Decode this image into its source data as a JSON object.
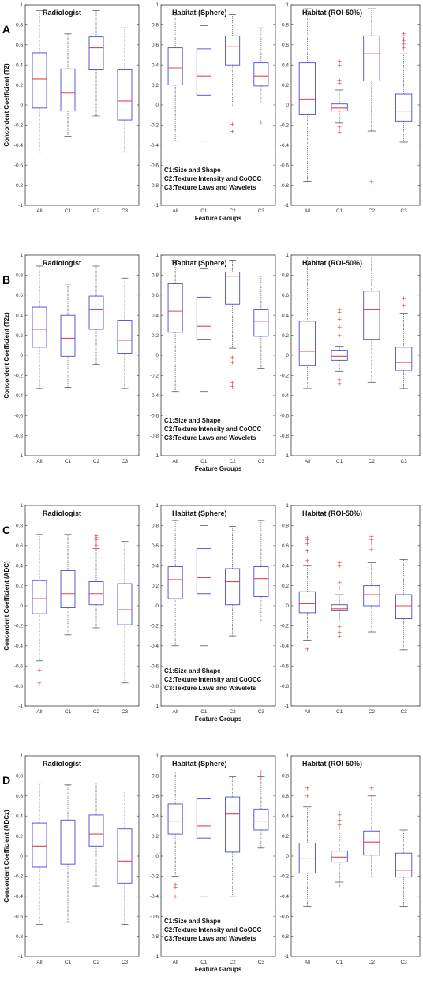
{
  "figure": {
    "xlabel": "Feature Groups",
    "legend_lines": [
      "C1:Size and Shape",
      "C2:Texture Intensity and CoOCC",
      "C3:Texture Laws and Wavelets"
    ],
    "subplot_titles": [
      "Radiologist",
      "Habitat (Sphere)",
      "Habitat (ROI-50%)"
    ],
    "ytick_labels": [
      "-1",
      "-0.8",
      "-0.6",
      "-0.4",
      "-0.2",
      "0",
      "0.2",
      "0.4",
      "0.6",
      "0.8",
      "1"
    ],
    "colors": {
      "box": "#4a4acf",
      "median": "#e8454a",
      "outlier": "#e04444"
    }
  },
  "chart_data": [
    {
      "type": "box",
      "panel": "A",
      "ylabel": "Concordent Coefficient (T2)",
      "categories": [
        "All",
        "C1",
        "C2",
        "C3"
      ],
      "ylim": [
        -1,
        1
      ],
      "subplots": [
        {
          "title": "Radiologist",
          "boxes": [
            {
              "q1": -0.03,
              "median": 0.26,
              "q3": 0.52,
              "lo": -0.47,
              "hi": 0.94,
              "outliers": []
            },
            {
              "q1": -0.06,
              "median": 0.12,
              "q3": 0.36,
              "lo": -0.31,
              "hi": 0.71,
              "outliers": []
            },
            {
              "q1": 0.35,
              "median": 0.57,
              "q3": 0.68,
              "lo": -0.11,
              "hi": 0.94,
              "outliers": []
            },
            {
              "q1": -0.15,
              "median": 0.04,
              "q3": 0.35,
              "lo": -0.47,
              "hi": 0.77,
              "outliers": []
            }
          ]
        },
        {
          "title": "Habitat (Sphere)",
          "boxes": [
            {
              "q1": 0.2,
              "median": 0.37,
              "q3": 0.57,
              "lo": -0.36,
              "hi": 0.9,
              "outliers": []
            },
            {
              "q1": 0.1,
              "median": 0.29,
              "q3": 0.56,
              "lo": -0.36,
              "hi": 0.79,
              "outliers": []
            },
            {
              "q1": 0.4,
              "median": 0.58,
              "q3": 0.69,
              "lo": -0.02,
              "hi": 0.9,
              "outliers": [
                -0.19,
                -0.26
              ]
            },
            {
              "q1": 0.19,
              "median": 0.29,
              "q3": 0.42,
              "lo": 0.02,
              "hi": 0.77,
              "outliers": [
                -0.17
              ]
            }
          ]
        },
        {
          "title": "Habitat (ROI-50%)",
          "boxes": [
            {
              "q1": -0.09,
              "median": 0.06,
              "q3": 0.42,
              "lo": -0.76,
              "hi": 0.96,
              "outliers": []
            },
            {
              "q1": -0.06,
              "median": -0.03,
              "q3": 0.01,
              "lo": -0.18,
              "hi": 0.15,
              "outliers": [
                0.22,
                0.25,
                0.4,
                0.44,
                -0.22,
                -0.27
              ]
            },
            {
              "q1": 0.24,
              "median": 0.51,
              "q3": 0.69,
              "lo": -0.26,
              "hi": 0.96,
              "outliers": [
                -0.76
              ]
            },
            {
              "q1": -0.16,
              "median": -0.06,
              "q3": 0.11,
              "lo": -0.37,
              "hi": 0.51,
              "outliers": [
                0.57,
                0.61,
                0.64,
                0.66,
                0.71
              ]
            }
          ]
        }
      ]
    },
    {
      "type": "box",
      "panel": "B",
      "ylabel": "Concordent Coefficient (T2z)",
      "categories": [
        "All",
        "C1",
        "C2",
        "C3"
      ],
      "ylim": [
        -1,
        1
      ],
      "subplots": [
        {
          "title": "Radiologist",
          "boxes": [
            {
              "q1": 0.08,
              "median": 0.26,
              "q3": 0.48,
              "lo": -0.33,
              "hi": 0.89,
              "outliers": []
            },
            {
              "q1": -0.01,
              "median": 0.17,
              "q3": 0.4,
              "lo": -0.32,
              "hi": 0.71,
              "outliers": []
            },
            {
              "q1": 0.26,
              "median": 0.46,
              "q3": 0.59,
              "lo": -0.09,
              "hi": 0.89,
              "outliers": []
            },
            {
              "q1": 0.02,
              "median": 0.15,
              "q3": 0.35,
              "lo": -0.33,
              "hi": 0.77,
              "outliers": []
            }
          ]
        },
        {
          "title": "Habitat (Sphere)",
          "boxes": [
            {
              "q1": 0.23,
              "median": 0.44,
              "q3": 0.72,
              "lo": -0.36,
              "hi": 0.95,
              "outliers": []
            },
            {
              "q1": 0.16,
              "median": 0.29,
              "q3": 0.58,
              "lo": -0.36,
              "hi": 0.87,
              "outliers": []
            },
            {
              "q1": 0.51,
              "median": 0.79,
              "q3": 0.83,
              "lo": 0.07,
              "hi": 0.95,
              "outliers": [
                -0.02,
                -0.07,
                -0.27,
                -0.31
              ]
            },
            {
              "q1": 0.19,
              "median": 0.34,
              "q3": 0.46,
              "lo": -0.13,
              "hi": 0.79,
              "outliers": []
            }
          ]
        },
        {
          "title": "Habitat (ROI-50%)",
          "boxes": [
            {
              "q1": -0.1,
              "median": 0.04,
              "q3": 0.34,
              "lo": -0.33,
              "hi": 0.98,
              "outliers": []
            },
            {
              "q1": -0.05,
              "median": -0.01,
              "q3": 0.05,
              "lo": -0.16,
              "hi": 0.09,
              "outliers": [
                0.2,
                0.28,
                0.36,
                0.43,
                0.46,
                -0.24,
                -0.28
              ]
            },
            {
              "q1": 0.16,
              "median": 0.46,
              "q3": 0.64,
              "lo": -0.27,
              "hi": 0.98,
              "outliers": []
            },
            {
              "q1": -0.15,
              "median": -0.07,
              "q3": 0.08,
              "lo": -0.33,
              "hi": 0.42,
              "outliers": [
                0.5,
                0.57
              ]
            }
          ]
        }
      ]
    },
    {
      "type": "box",
      "panel": "C",
      "ylabel": "Concordent Coefficient (ADC)",
      "categories": [
        "All",
        "C1",
        "C2",
        "C3"
      ],
      "ylim": [
        -1,
        1
      ],
      "subplots": [
        {
          "title": "Radiologist",
          "boxes": [
            {
              "q1": -0.08,
              "median": 0.07,
              "q3": 0.25,
              "lo": -0.55,
              "hi": 0.71,
              "outliers": [
                -0.64,
                -0.77
              ]
            },
            {
              "q1": -0.02,
              "median": 0.12,
              "q3": 0.35,
              "lo": -0.29,
              "hi": 0.71,
              "outliers": []
            },
            {
              "q1": 0.01,
              "median": 0.12,
              "q3": 0.24,
              "lo": -0.22,
              "hi": 0.57,
              "outliers": [
                0.6,
                0.63,
                0.66,
                0.68,
                0.7
              ]
            },
            {
              "q1": -0.19,
              "median": -0.04,
              "q3": 0.22,
              "lo": -0.77,
              "hi": 0.64,
              "outliers": []
            }
          ]
        },
        {
          "title": "Habitat (Sphere)",
          "boxes": [
            {
              "q1": 0.07,
              "median": 0.26,
              "q3": 0.39,
              "lo": -0.4,
              "hi": 0.85,
              "outliers": []
            },
            {
              "q1": 0.12,
              "median": 0.28,
              "q3": 0.57,
              "lo": -0.4,
              "hi": 0.8,
              "outliers": []
            },
            {
              "q1": 0.01,
              "median": 0.24,
              "q3": 0.37,
              "lo": -0.3,
              "hi": 0.79,
              "outliers": []
            },
            {
              "q1": 0.09,
              "median": 0.27,
              "q3": 0.39,
              "lo": -0.16,
              "hi": 0.85,
              "outliers": []
            }
          ]
        },
        {
          "title": "Habitat (ROI-50%)",
          "boxes": [
            {
              "q1": -0.07,
              "median": 0.02,
              "q3": 0.14,
              "lo": -0.35,
              "hi": 0.4,
              "outliers": [
                0.45,
                0.55,
                0.62,
                0.66,
                0.68,
                -0.43
              ]
            },
            {
              "q1": -0.05,
              "median": -0.03,
              "q3": 0.01,
              "lo": -0.16,
              "hi": 0.11,
              "outliers": [
                0.18,
                0.23,
                0.4,
                0.43,
                -0.21,
                -0.26,
                -0.3
              ]
            },
            {
              "q1": 0.0,
              "median": 0.11,
              "q3": 0.2,
              "lo": -0.26,
              "hi": 0.43,
              "outliers": [
                0.56,
                0.63,
                0.66,
                0.69
              ]
            },
            {
              "q1": -0.13,
              "median": 0.0,
              "q3": 0.11,
              "lo": -0.44,
              "hi": 0.46,
              "outliers": []
            }
          ]
        }
      ]
    },
    {
      "type": "box",
      "panel": "D",
      "ylabel": "Concordent Coefficient (ADCz)",
      "categories": [
        "All",
        "C1",
        "C2",
        "C3"
      ],
      "ylim": [
        -1,
        1
      ],
      "subplots": [
        {
          "title": "Radiologist",
          "boxes": [
            {
              "q1": -0.11,
              "median": 0.1,
              "q3": 0.33,
              "lo": -0.68,
              "hi": 0.73,
              "outliers": []
            },
            {
              "q1": -0.08,
              "median": 0.13,
              "q3": 0.36,
              "lo": -0.66,
              "hi": 0.71,
              "outliers": []
            },
            {
              "q1": 0.1,
              "median": 0.22,
              "q3": 0.41,
              "lo": -0.3,
              "hi": 0.73,
              "outliers": []
            },
            {
              "q1": -0.27,
              "median": -0.05,
              "q3": 0.27,
              "lo": -0.68,
              "hi": 0.65,
              "outliers": []
            }
          ]
        },
        {
          "title": "Habitat (Sphere)",
          "boxes": [
            {
              "q1": 0.22,
              "median": 0.35,
              "q3": 0.52,
              "lo": -0.2,
              "hi": 0.84,
              "outliers": [
                -0.28,
                -0.31,
                -0.4
              ]
            },
            {
              "q1": 0.18,
              "median": 0.3,
              "q3": 0.57,
              "lo": -0.4,
              "hi": 0.8,
              "outliers": []
            },
            {
              "q1": 0.04,
              "median": 0.42,
              "q3": 0.59,
              "lo": -0.4,
              "hi": 0.79,
              "outliers": []
            },
            {
              "q1": 0.26,
              "median": 0.35,
              "q3": 0.47,
              "lo": 0.08,
              "hi": 0.79,
              "outliers": [
                0.8,
                0.84
              ]
            }
          ]
        },
        {
          "title": "Habitat (ROI-50%)",
          "boxes": [
            {
              "q1": -0.17,
              "median": -0.02,
              "q3": 0.13,
              "lo": -0.5,
              "hi": 0.49,
              "outliers": [
                0.6,
                0.68
              ]
            },
            {
              "q1": -0.06,
              "median": -0.01,
              "q3": 0.05,
              "lo": -0.26,
              "hi": 0.24,
              "outliers": [
                0.28,
                0.32,
                0.36,
                0.41,
                0.43,
                -0.29
              ]
            },
            {
              "q1": 0.01,
              "median": 0.14,
              "q3": 0.25,
              "lo": -0.21,
              "hi": 0.6,
              "outliers": [
                0.68
              ]
            },
            {
              "q1": -0.21,
              "median": -0.14,
              "q3": 0.03,
              "lo": -0.5,
              "hi": 0.26,
              "outliers": []
            }
          ]
        }
      ]
    }
  ]
}
